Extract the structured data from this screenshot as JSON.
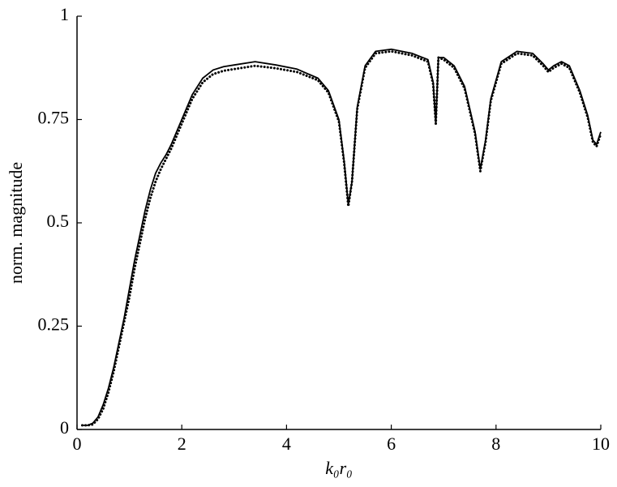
{
  "chart_data": {
    "type": "line",
    "xlabel": "k₀r₀",
    "ylabel": "norm. magnitude",
    "x": [
      0.1,
      0.2,
      0.3,
      0.4,
      0.5,
      0.6,
      0.7,
      0.8,
      0.9,
      1.0,
      1.1,
      1.2,
      1.3,
      1.4,
      1.5,
      1.6,
      1.7,
      1.8,
      1.9,
      2.0,
      2.2,
      2.4,
      2.6,
      2.8,
      3.0,
      3.4,
      3.8,
      4.2,
      4.6,
      4.8,
      5.0,
      5.1,
      5.18,
      5.25,
      5.35,
      5.5,
      5.7,
      6.0,
      6.4,
      6.7,
      6.8,
      6.85,
      6.9,
      7.0,
      7.2,
      7.4,
      7.6,
      7.7,
      7.8,
      7.9,
      8.1,
      8.4,
      8.7,
      8.9,
      9.0,
      9.1,
      9.25,
      9.4,
      9.6,
      9.75,
      9.85,
      9.92,
      10.0
    ],
    "series": [
      {
        "color": "#000000",
        "linestyle": "solid",
        "values": [
          0.01,
          0.01,
          0.015,
          0.03,
          0.06,
          0.1,
          0.15,
          0.21,
          0.27,
          0.34,
          0.41,
          0.47,
          0.53,
          0.58,
          0.62,
          0.645,
          0.665,
          0.69,
          0.72,
          0.75,
          0.81,
          0.85,
          0.87,
          0.878,
          0.882,
          0.89,
          0.882,
          0.872,
          0.85,
          0.82,
          0.75,
          0.65,
          0.545,
          0.6,
          0.78,
          0.88,
          0.915,
          0.92,
          0.91,
          0.895,
          0.84,
          0.74,
          0.9,
          0.9,
          0.88,
          0.83,
          0.72,
          0.63,
          0.7,
          0.8,
          0.89,
          0.915,
          0.91,
          0.885,
          0.87,
          0.88,
          0.89,
          0.88,
          0.82,
          0.76,
          0.7,
          0.69,
          0.72
        ]
      },
      {
        "color": "#000000",
        "linestyle": "dotted",
        "values": [
          0.01,
          0.01,
          0.012,
          0.025,
          0.05,
          0.09,
          0.14,
          0.2,
          0.26,
          0.32,
          0.39,
          0.45,
          0.51,
          0.56,
          0.6,
          0.63,
          0.655,
          0.68,
          0.71,
          0.74,
          0.8,
          0.84,
          0.86,
          0.868,
          0.872,
          0.88,
          0.874,
          0.865,
          0.845,
          0.815,
          0.745,
          0.645,
          0.54,
          0.6,
          0.775,
          0.875,
          0.91,
          0.915,
          0.905,
          0.89,
          0.835,
          0.74,
          0.9,
          0.895,
          0.875,
          0.825,
          0.715,
          0.625,
          0.695,
          0.795,
          0.885,
          0.91,
          0.905,
          0.88,
          0.865,
          0.875,
          0.885,
          0.875,
          0.815,
          0.755,
          0.695,
          0.685,
          0.715
        ]
      }
    ],
    "xlim": [
      0,
      10
    ],
    "xticks": [
      0,
      2,
      4,
      6,
      8,
      10
    ],
    "ylim": [
      0,
      1
    ],
    "yticks": [
      0,
      0.25,
      0.5,
      0.75,
      1
    ]
  }
}
